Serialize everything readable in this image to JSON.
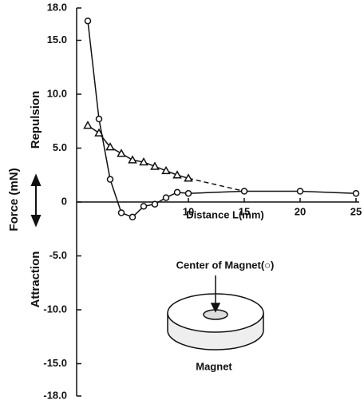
{
  "chart_data": {
    "type": "line",
    "xlabel": "Distance L(mm)",
    "ylabel": "Force (mN)",
    "ylabel_upper": "Repulsion",
    "ylabel_lower": "Attraction",
    "annotations": [
      "Center of Magnet(○)",
      "Magnet"
    ],
    "xlim": [
      0,
      25
    ],
    "ylim": [
      -18,
      18
    ],
    "xticks": [
      10,
      15,
      20,
      25
    ],
    "yticks": [
      {
        "value": 18,
        "label": "18.0"
      },
      {
        "value": 15,
        "label": "15.0"
      },
      {
        "value": 10,
        "label": "10.0"
      },
      {
        "value": 5,
        "label": "5.0"
      },
      0,
      {
        "value": -5,
        "label": "-5.0"
      },
      {
        "value": -10,
        "label": "-10.0"
      },
      {
        "value": -15,
        "label": "-15.0"
      },
      {
        "value": -18,
        "label": "-18.0"
      }
    ],
    "series": [
      {
        "marker": "circle",
        "color": "#111111",
        "x": [
          1,
          2,
          3,
          4,
          5,
          6,
          7,
          8,
          9,
          10,
          15,
          20,
          25
        ],
        "values": [
          16.8,
          7.7,
          2.1,
          -1.0,
          -1.4,
          -0.4,
          -0.2,
          0.4,
          0.9,
          0.8,
          1.0,
          1.0,
          0.8
        ]
      },
      {
        "marker": "triangle",
        "color": "#111111",
        "x": [
          1,
          2,
          3,
          4,
          5,
          6,
          7,
          8,
          9,
          10
        ],
        "values": [
          7.1,
          6.4,
          5.1,
          4.5,
          3.9,
          3.7,
          3.3,
          2.9,
          2.5,
          2.2
        ]
      }
    ]
  }
}
